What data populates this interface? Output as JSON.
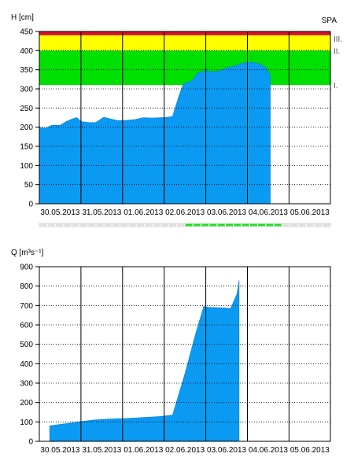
{
  "colors": {
    "fill": "#0a9af2",
    "band_red": "#d2122e",
    "band_yellow": "#ffff00",
    "band_green": "#00e000",
    "status_green": "#22dd22",
    "status_gray": "#e0e0e0"
  },
  "chart_data": [
    {
      "type": "area",
      "ylabel": "H [cm]",
      "corner_label": "SPA",
      "ylim": [
        0,
        450
      ],
      "yticks": [
        "0",
        "50",
        "100",
        "150",
        "200",
        "250",
        "300",
        "350",
        "400",
        "450"
      ],
      "grid": true,
      "categories": [
        "30.05.2013",
        "31.05.2013",
        "01.06.2013",
        "02.06.2013",
        "03.06.2013",
        "04.06.2013",
        "05.06.2013"
      ],
      "thresholds": [
        {
          "label": "I.",
          "from": 310,
          "to": 400,
          "color": "green"
        },
        {
          "label": "II.",
          "from": 400,
          "to": 440,
          "color": "yellow"
        },
        {
          "label": "III.",
          "from": 440,
          "to": 450,
          "color": "red"
        }
      ],
      "series": [
        {
          "x": [
            0,
            0.15,
            0.3,
            0.5,
            0.65,
            0.8,
            0.9,
            1.0,
            1.1,
            1.2,
            1.35,
            1.55,
            1.7,
            1.9,
            2.1,
            2.3,
            2.5,
            2.7,
            2.9,
            3.0,
            3.2,
            3.35,
            3.45,
            3.5,
            3.6,
            3.7,
            3.8,
            4.0,
            4.1,
            4.3,
            4.5,
            4.7,
            4.9,
            5.1,
            5.3,
            5.45,
            5.52,
            5.55,
            5.55
          ],
          "y": [
            200,
            197,
            205,
            205,
            215,
            222,
            225,
            215,
            213,
            212,
            212,
            226,
            222,
            217,
            218,
            220,
            225,
            224,
            225,
            225,
            228,
            280,
            310,
            315,
            318,
            325,
            342,
            348,
            345,
            346,
            355,
            360,
            368,
            370,
            365,
            355,
            340,
            338,
            0
          ]
        }
      ],
      "status_bar": {
        "segments": 36,
        "active_from": 18,
        "active_to": 30
      }
    },
    {
      "type": "area",
      "ylabel": "Q [m³s⁻¹]",
      "ylim": [
        0,
        900
      ],
      "yticks": [
        "0",
        "100",
        "200",
        "300",
        "400",
        "500",
        "600",
        "700",
        "800",
        "900"
      ],
      "grid": true,
      "categories": [
        "30.05.2013",
        "31.05.2013",
        "01.06.2013",
        "02.06.2013",
        "03.06.2013",
        "04.06.2013",
        "05.06.2013"
      ],
      "series": [
        {
          "x": [
            0.25,
            0.6,
            0.95,
            1.3,
            1.7,
            2.1,
            2.5,
            2.9,
            3.2,
            3.5,
            3.75,
            3.95,
            4.1,
            4.4,
            4.6,
            4.75,
            4.8
          ],
          "y": [
            80,
            90,
            100,
            110,
            115,
            118,
            123,
            128,
            135,
            350,
            550,
            695,
            690,
            688,
            685,
            760,
            830
          ]
        }
      ]
    }
  ]
}
